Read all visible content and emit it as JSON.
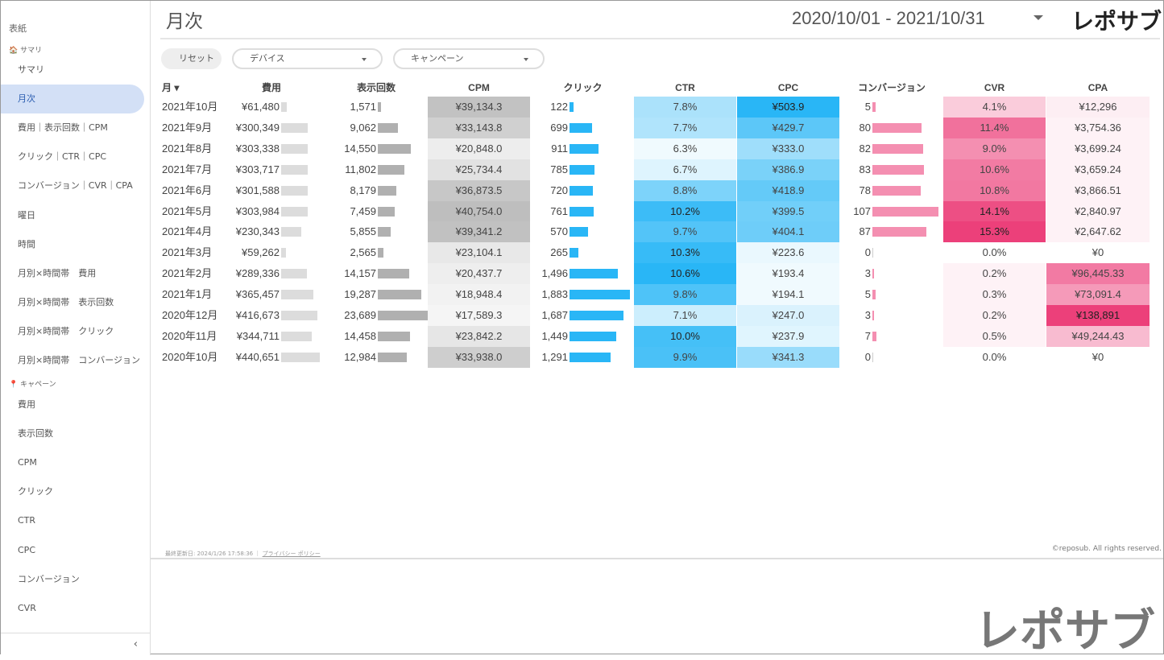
{
  "sidebar": {
    "top": "表紙",
    "section1": "サマリ",
    "items1": [
      "サマリ",
      "月次",
      "費用｜表示回数｜CPM",
      "クリック｜CTR｜CPC",
      "コンバージョン｜CVR｜CPA",
      "曜日",
      "時間",
      "月別×時間帯　費用",
      "月別×時間帯　表示回数",
      "月別×時間帯　クリック",
      "月別×時間帯　コンバージョン"
    ],
    "section2": "キャペーン",
    "items2": [
      "費用",
      "表示回数",
      "CPM",
      "クリック",
      "CTR",
      "CPC",
      "コンバージョン",
      "CVR"
    ],
    "collapse": "‹"
  },
  "header": {
    "title": "月次",
    "date_range": "2020/10/01 - 2021/10/31",
    "logo": "レポサブ"
  },
  "filters": {
    "reset": "リセット",
    "device": "デバイス",
    "campaign": "キャンペーン"
  },
  "table": {
    "headers": [
      "月 ▾",
      "費用",
      "表示回数",
      "CPM",
      "クリック",
      "CTR",
      "CPC",
      "コンバージョン",
      "CVR",
      "CPA"
    ],
    "rows": [
      [
        "2021年10月",
        "¥61,480",
        61480,
        "1,571",
        1571,
        "¥39,134.3",
        39134.3,
        "122",
        122,
        "7.8%",
        7.8,
        "¥503.9",
        503.9,
        "5",
        5,
        "4.1%",
        4.1,
        "¥12,296",
        12296
      ],
      [
        "2021年9月",
        "¥300,349",
        300349,
        "9,062",
        9062,
        "¥33,143.8",
        33143.8,
        "699",
        699,
        "7.7%",
        7.7,
        "¥429.7",
        429.7,
        "80",
        80,
        "11.4%",
        11.4,
        "¥3,754.36",
        3754.36
      ],
      [
        "2021年8月",
        "¥303,338",
        303338,
        "14,550",
        14550,
        "¥20,848.0",
        20848,
        "911",
        911,
        "6.3%",
        6.3,
        "¥333.0",
        333,
        "82",
        82,
        "9.0%",
        9.0,
        "¥3,699.24",
        3699.24
      ],
      [
        "2021年7月",
        "¥303,717",
        303717,
        "11,802",
        11802,
        "¥25,734.4",
        25734.4,
        "785",
        785,
        "6.7%",
        6.7,
        "¥386.9",
        386.9,
        "83",
        83,
        "10.6%",
        10.6,
        "¥3,659.24",
        3659.24
      ],
      [
        "2021年6月",
        "¥301,588",
        301588,
        "8,179",
        8179,
        "¥36,873.5",
        36873.5,
        "720",
        720,
        "8.8%",
        8.8,
        "¥418.9",
        418.9,
        "78",
        78,
        "10.8%",
        10.8,
        "¥3,866.51",
        3866.51
      ],
      [
        "2021年5月",
        "¥303,984",
        303984,
        "7,459",
        7459,
        "¥40,754.0",
        40754,
        "761",
        761,
        "10.2%",
        10.2,
        "¥399.5",
        399.5,
        "107",
        107,
        "14.1%",
        14.1,
        "¥2,840.97",
        2840.97
      ],
      [
        "2021年4月",
        "¥230,343",
        230343,
        "5,855",
        5855,
        "¥39,341.2",
        39341.2,
        "570",
        570,
        "9.7%",
        9.7,
        "¥404.1",
        404.1,
        "87",
        87,
        "15.3%",
        15.3,
        "¥2,647.62",
        2647.62
      ],
      [
        "2021年3月",
        "¥59,262",
        59262,
        "2,565",
        2565,
        "¥23,104.1",
        23104.1,
        "265",
        265,
        "10.3%",
        10.3,
        "¥223.6",
        223.6,
        "0",
        0,
        "0.0%",
        0,
        "¥0",
        0
      ],
      [
        "2021年2月",
        "¥289,336",
        289336,
        "14,157",
        14157,
        "¥20,437.7",
        20437.7,
        "1,496",
        1496,
        "10.6%",
        10.6,
        "¥193.4",
        193.4,
        "3",
        3,
        "0.2%",
        0.2,
        "¥96,445.33",
        96445.33
      ],
      [
        "2021年1月",
        "¥365,457",
        365457,
        "19,287",
        19287,
        "¥18,948.4",
        18948.4,
        "1,883",
        1883,
        "9.8%",
        9.8,
        "¥194.1",
        194.1,
        "5",
        5,
        "0.3%",
        0.3,
        "¥73,091.4",
        73091.4
      ],
      [
        "2020年12月",
        "¥416,673",
        416673,
        "23,689",
        23689,
        "¥17,589.3",
        17589.3,
        "1,687",
        1687,
        "7.1%",
        7.1,
        "¥247.0",
        247,
        "3",
        3,
        "0.2%",
        0.2,
        "¥138,891",
        138891
      ],
      [
        "2020年11月",
        "¥344,711",
        344711,
        "14,458",
        14458,
        "¥23,842.2",
        23842.2,
        "1,449",
        1449,
        "10.0%",
        10.0,
        "¥237.9",
        237.9,
        "7",
        7,
        "0.5%",
        0.5,
        "¥49,244.43",
        49244.43
      ],
      [
        "2020年10月",
        "¥440,651",
        440651,
        "12,984",
        12984,
        "¥33,938.0",
        33938,
        "1,291",
        1291,
        "9.9%",
        9.9,
        "¥341.3",
        341.3,
        "0",
        0,
        "0.0%",
        0,
        "¥0",
        0
      ]
    ]
  },
  "footer": {
    "updated": "最終更新日: 2024/1/26 17:58:36",
    "separator": "｜",
    "privacy": "プライバシー ポリシー",
    "copyright": "©reposub. All rights reserved."
  },
  "colors": {
    "grey_bar": "#dcdcdc",
    "imp_bar": "#b0b0b0",
    "blue": "#29b6f6",
    "pink": "#f48fb1",
    "pink_dark": "#ec407a"
  }
}
